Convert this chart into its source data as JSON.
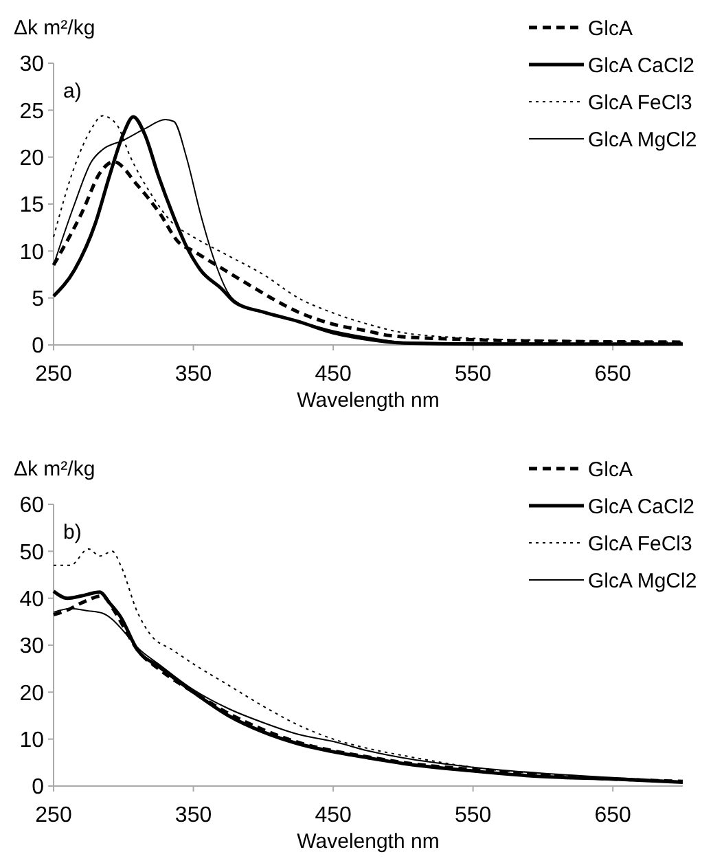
{
  "chart_data": [
    {
      "type": "line",
      "ylabel": "Δk m²/kg",
      "xlabel": "Wavelength nm",
      "annotations": [
        "a)"
      ],
      "xlim": [
        250,
        700
      ],
      "xticks": [
        250,
        350,
        450,
        550,
        650
      ],
      "ylim": [
        0,
        30
      ],
      "yticks": [
        0,
        5,
        10,
        15,
        20,
        25,
        30
      ],
      "grid": false,
      "legend": "top right",
      "series": [
        {
          "name": "GlcA",
          "color": "#000000",
          "line_style": "dashed",
          "x": [
            250,
            270,
            284,
            293,
            310,
            326,
            339,
            350,
            372,
            392,
            408,
            425,
            450,
            474,
            490,
            540,
            600,
            700
          ],
          "values": [
            8.5,
            14,
            18.5,
            19.5,
            17,
            14,
            11,
            10,
            8,
            6.2,
            4.8,
            3.5,
            2.2,
            1.5,
            1,
            0.6,
            0.4,
            0.3
          ]
        },
        {
          "name": "GlcA CaCl2",
          "color": "#000000",
          "line_style": "solid",
          "x": [
            250,
            265,
            280,
            290,
            300,
            307,
            315,
            325,
            335,
            345,
            355,
            370,
            380,
            400,
            425,
            450,
            475,
            500,
            550,
            700
          ],
          "values": [
            5.2,
            8,
            13,
            18,
            22.5,
            24.3,
            22.5,
            18,
            14,
            10.5,
            8,
            6,
            4.5,
            3.5,
            2.5,
            1.3,
            0.6,
            0.2,
            0.1,
            0.1
          ]
        },
        {
          "name": "GlcA FeCl3",
          "color": "#000000",
          "line_style": "dotted",
          "x": [
            250,
            265,
            277,
            285,
            295,
            305,
            320,
            335,
            350,
            375,
            400,
            425,
            450,
            475,
            500,
            550,
            600,
            700
          ],
          "values": [
            11.5,
            19,
            23,
            24.4,
            23.5,
            20,
            16,
            13,
            11.5,
            9.5,
            7.5,
            5,
            3.4,
            2.2,
            1.3,
            0.7,
            0.5,
            0.3
          ]
        },
        {
          "name": "GlcA MgCl2",
          "color": "#000000",
          "line_style": "solid",
          "x": [
            250,
            265,
            277,
            285,
            300,
            315,
            330,
            336,
            345,
            355,
            365,
            375,
            385,
            400,
            425,
            450,
            475,
            500,
            550,
            700
          ],
          "values": [
            8.5,
            15,
            19.5,
            20.8,
            21.8,
            23,
            24,
            23.8,
            20,
            14,
            9,
            5.5,
            4.2,
            3.5,
            2.5,
            1.5,
            0.8,
            0.3,
            0.2,
            0.1
          ]
        }
      ]
    },
    {
      "type": "line",
      "ylabel": "Δk m²/kg",
      "xlabel": "Wavelength nm",
      "annotations": [
        "b)"
      ],
      "xlim": [
        250,
        700
      ],
      "xticks": [
        250,
        350,
        450,
        550,
        650
      ],
      "ylim": [
        0,
        60
      ],
      "yticks": [
        0,
        10,
        20,
        30,
        40,
        50,
        60
      ],
      "grid": false,
      "legend": "top right",
      "series": [
        {
          "name": "GlcA",
          "color": "#000000",
          "line_style": "dashed",
          "x": [
            250,
            260,
            270,
            285,
            292,
            300,
            310,
            325,
            350,
            375,
            400,
            425,
            450,
            475,
            500,
            550,
            600,
            650,
            700
          ],
          "values": [
            36.5,
            37.5,
            39,
            40.5,
            38,
            34,
            29,
            25,
            20,
            15.5,
            12,
            9.3,
            7.5,
            6.2,
            5,
            3.5,
            2.3,
            1.5,
            1
          ]
        },
        {
          "name": "GlcA CaCl2",
          "color": "#000000",
          "line_style": "solid",
          "x": [
            250,
            260,
            270,
            283,
            290,
            298,
            310,
            325,
            350,
            375,
            400,
            425,
            450,
            475,
            500,
            550,
            600,
            650,
            700
          ],
          "values": [
            41.5,
            40,
            40.5,
            41.3,
            39,
            36,
            29,
            25.5,
            20,
            15,
            11.5,
            9,
            7.3,
            6,
            4.8,
            3.2,
            2,
            1.5,
            0.8
          ]
        },
        {
          "name": "GlcA FeCl3",
          "color": "#000000",
          "line_style": "dotted",
          "x": [
            250,
            262,
            275,
            283,
            292,
            298,
            310,
            320,
            335,
            350,
            375,
            400,
            425,
            450,
            475,
            500,
            550,
            600,
            650,
            700
          ],
          "values": [
            47,
            47,
            50.5,
            49,
            50,
            47,
            37,
            32,
            29,
            26,
            21.5,
            17,
            13,
            10,
            8,
            6.5,
            4,
            2.5,
            1.5,
            0.8
          ]
        },
        {
          "name": "GlcA MgCl2",
          "color": "#000000",
          "line_style": "solid",
          "x": [
            250,
            262,
            275,
            285,
            292,
            300,
            310,
            325,
            350,
            375,
            400,
            425,
            450,
            475,
            500,
            550,
            600,
            650,
            700
          ],
          "values": [
            37,
            37.8,
            37.3,
            36.8,
            35.5,
            33,
            29.5,
            26,
            20.5,
            16.5,
            13.5,
            11,
            9.5,
            7.5,
            6,
            4,
            2.7,
            1.8,
            1
          ]
        }
      ]
    }
  ]
}
